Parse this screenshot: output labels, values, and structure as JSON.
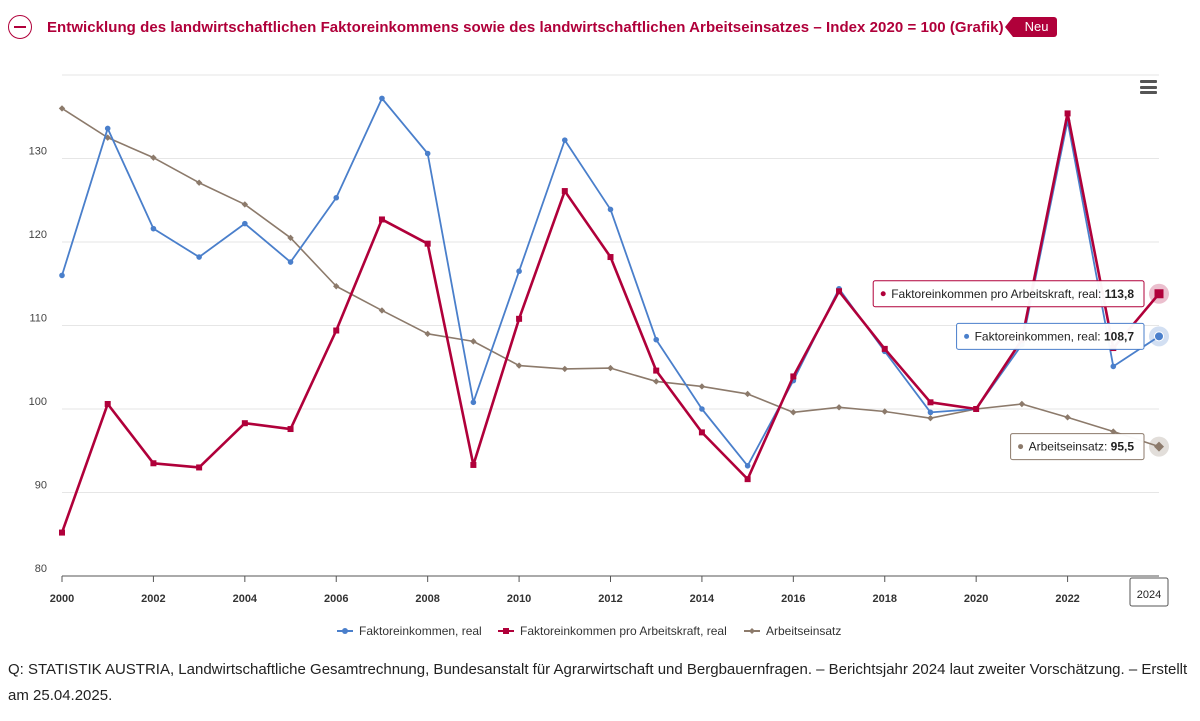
{
  "header": {
    "title": "Entwicklung des landwirtschaftlichen Faktoreinkommens sowie des landwirtschaftlichen Arbeitseinsatzes – Index 2020 = 100 (Grafik)",
    "badge": "Neu"
  },
  "source": "Q: STATISTIK AUSTRIA, Landwirtschaftliche Gesamtrechnung, Bundesanstalt für Agrarwirtschaft und Bergbauernfragen. – Berichtsjahr 2024 laut zweiter Vorschätzung. – Erstellt am 25.04.2025.",
  "icons": {
    "collapse": "minus-circle-icon",
    "menu": "hamburger-menu-icon"
  },
  "colors": {
    "accent": "#b0003a",
    "series1": "#4a7fcb",
    "series2": "#b0003a",
    "series3": "#8c7a6b"
  },
  "chart_data": {
    "type": "line",
    "x": [
      2000,
      2001,
      2002,
      2003,
      2004,
      2005,
      2006,
      2007,
      2008,
      2009,
      2010,
      2011,
      2012,
      2013,
      2014,
      2015,
      2016,
      2017,
      2018,
      2019,
      2020,
      2021,
      2022,
      2023,
      2024
    ],
    "xlim": [
      2000,
      2024
    ],
    "ylim": [
      80,
      138
    ],
    "xticks": [
      "2000",
      "2002",
      "2004",
      "2006",
      "2008",
      "2010",
      "2012",
      "2014",
      "2016",
      "2018",
      "2020",
      "2022"
    ],
    "yticks": [
      "80",
      "90",
      "100",
      "110",
      "120",
      "130"
    ],
    "grid": true,
    "legend_position": "bottom-center",
    "series": [
      {
        "name": "Faktoreinkommen, real",
        "color": "#4a7fcb",
        "marker": "circle",
        "values": [
          116.0,
          133.6,
          121.6,
          118.2,
          122.2,
          117.6,
          125.3,
          137.2,
          130.6,
          100.8,
          116.5,
          132.2,
          123.9,
          108.3,
          100.0,
          93.2,
          103.4,
          114.4,
          106.9,
          99.6,
          100.0,
          107.7,
          134.5,
          105.1,
          108.7
        ]
      },
      {
        "name": "Faktoreinkommen pro Arbeitskraft, real",
        "color": "#b0003a",
        "marker": "square",
        "values": [
          85.2,
          100.6,
          93.5,
          93.0,
          98.3,
          97.6,
          109.4,
          122.7,
          119.8,
          93.3,
          110.8,
          126.1,
          118.2,
          104.6,
          97.2,
          91.6,
          103.9,
          114.1,
          107.2,
          100.8,
          100.0,
          108.3,
          135.4,
          107.3,
          113.8
        ]
      },
      {
        "name": "Arbeitseinsatz",
        "color": "#8c7a6b",
        "marker": "diamond",
        "values": [
          136.0,
          132.5,
          130.1,
          127.1,
          124.5,
          120.5,
          114.7,
          111.8,
          109.0,
          108.1,
          105.2,
          104.8,
          104.9,
          103.3,
          102.7,
          101.8,
          99.6,
          100.2,
          99.7,
          98.9,
          100.0,
          100.6,
          99.0,
          97.3,
          95.5
        ]
      }
    ],
    "tooltips": [
      {
        "label": "Faktoreinkommen pro Arbeitskraft, real: ",
        "value": "113,8",
        "series": 1
      },
      {
        "label": "Faktoreinkommen, real: ",
        "value": "108,7",
        "series": 0
      },
      {
        "label": "Arbeitseinsatz: ",
        "value": "95,5",
        "series": 2
      }
    ],
    "hover_x_label": "2024"
  }
}
